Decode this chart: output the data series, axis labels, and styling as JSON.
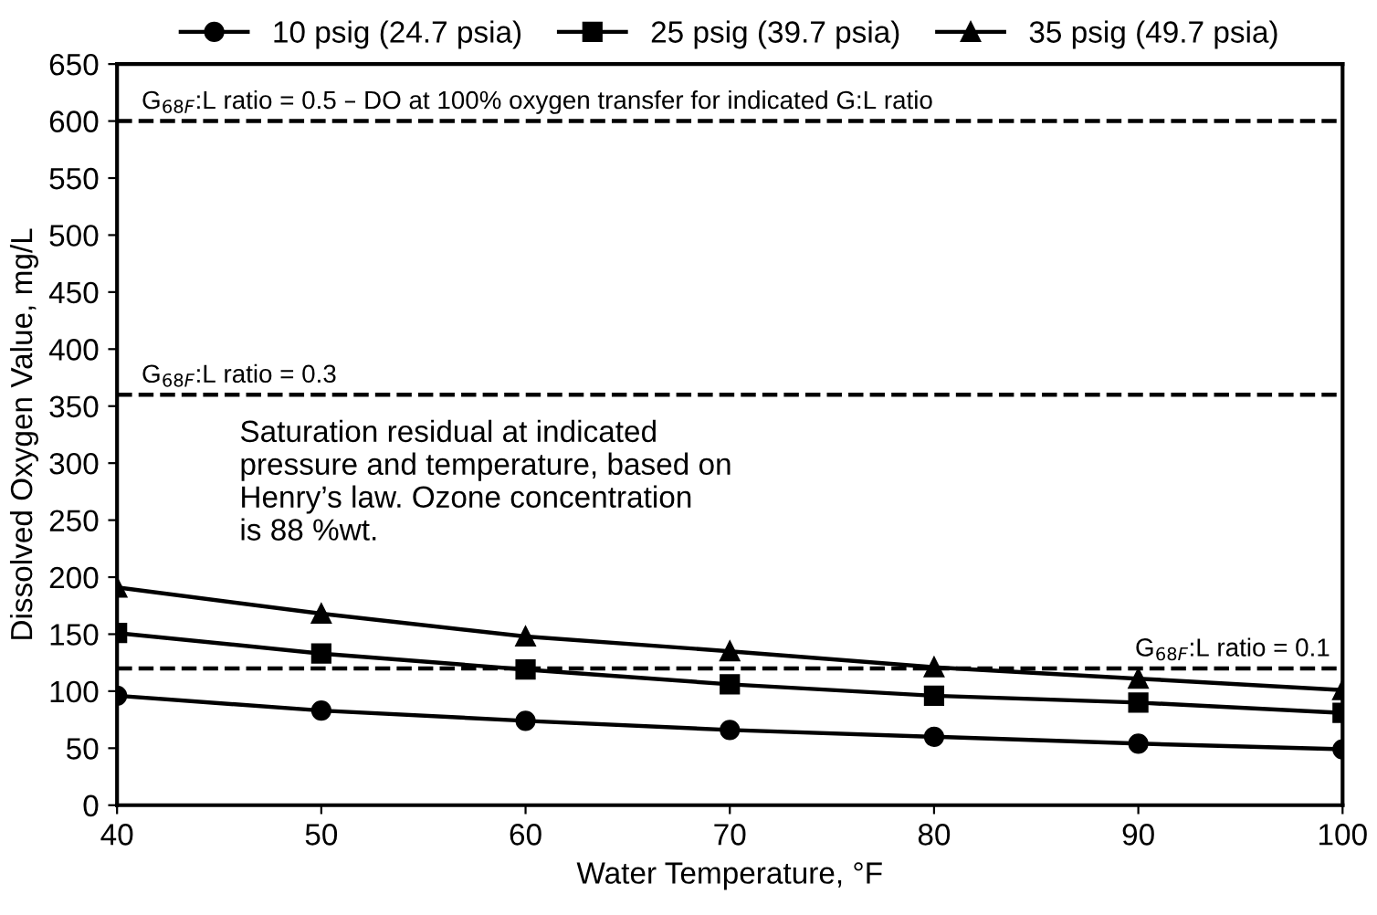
{
  "chart_data": {
    "type": "line",
    "xlabel": "Water Temperature, °F",
    "ylabel": "Dissolved Oxygen Value, mg/L",
    "x": [
      40,
      50,
      60,
      70,
      80,
      90,
      100
    ],
    "series": [
      {
        "name": "10 psig (24.7 psia)",
        "color": "#000000",
        "marker": "circle",
        "values": [
          96,
          83,
          74,
          66,
          60,
          54,
          49
        ]
      },
      {
        "name": "25 psig (39.7 psia)",
        "color": "#000000",
        "marker": "square",
        "values": [
          151,
          133,
          119,
          106,
          96,
          90,
          81
        ]
      },
      {
        "name": "35 psig (49.7 psia)",
        "color": "#000000",
        "marker": "triangle",
        "values": [
          191,
          168,
          148,
          135,
          121,
          111,
          101
        ]
      }
    ],
    "xlim": [
      40,
      100
    ],
    "xticks": [
      40,
      50,
      60,
      70,
      80,
      90,
      100
    ],
    "ylim": [
      0,
      650
    ],
    "yticks": [
      0,
      50,
      100,
      150,
      200,
      250,
      300,
      350,
      400,
      450,
      500,
      550,
      600,
      650
    ],
    "ref_lines": [
      {
        "axis": "y",
        "value": 600,
        "color": "#000000",
        "line_style": "dashed"
      },
      {
        "axis": "y",
        "value": 360,
        "color": "#000000",
        "line_style": "dashed"
      },
      {
        "axis": "y",
        "value": 120,
        "color": "#000000",
        "line_style": "dashed"
      }
    ],
    "annotations": [
      {
        "text": "G$_{68F}$:L ratio = 0.5 – DO at 100% oxygen transfer for indicated G:L ratio",
        "y": 600
      },
      {
        "text": "G$_{68F}$:L ratio = 0.3",
        "y": 360
      },
      {
        "text": "G$_{68F}$:L ratio = 0.1",
        "y": 120
      },
      "Saturation residual at indicated\npressure and temperature, based on\nHenry’s law. Ozone concentration\nis 88 %wt."
    ],
    "legend": "top",
    "grid": false,
    "line_style": "solid"
  }
}
